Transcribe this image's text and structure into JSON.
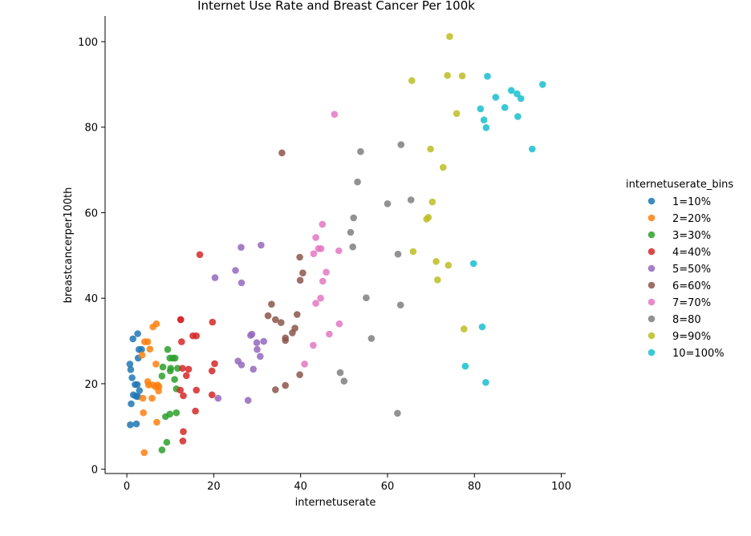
{
  "chart_data": {
    "type": "scatter",
    "title": "Internet Use Rate and Breast Cancer Per 100k",
    "xlabel": "internetuserate",
    "ylabel": "breastcancerper100th",
    "xlim": [
      -5,
      101
    ],
    "ylim": [
      -1,
      106
    ],
    "xticks": [
      "0",
      "20",
      "40",
      "60",
      "80",
      "100"
    ],
    "yticks": [
      "0",
      "20",
      "40",
      "60",
      "80",
      "100"
    ],
    "grid": false,
    "legend_title": "internetuserate_bins",
    "legend_position": "right",
    "series": [
      {
        "name": "1=10%",
        "color": "#1f77b4",
        "points": [
          [
            0.8,
            10.4
          ],
          [
            0.7,
            24.6
          ],
          [
            0.9,
            23.3
          ],
          [
            1.2,
            21.4
          ],
          [
            1.5,
            17.4
          ],
          [
            1.0,
            15.3
          ],
          [
            1.9,
            19.8
          ],
          [
            2.4,
            19.8
          ],
          [
            2.1,
            17.1
          ],
          [
            2.9,
            18.4
          ],
          [
            2.5,
            17.0
          ],
          [
            2.2,
            10.6
          ],
          [
            1.4,
            30.5
          ],
          [
            2.5,
            31.7
          ],
          [
            2.8,
            28.0
          ],
          [
            3.4,
            28.0
          ],
          [
            2.6,
            26.0
          ]
        ]
      },
      {
        "name": "2=20%",
        "color": "#ff7f0e",
        "points": [
          [
            4.0,
            3.9
          ],
          [
            3.8,
            13.2
          ],
          [
            3.7,
            16.6
          ],
          [
            3.5,
            26.7
          ],
          [
            4.1,
            29.8
          ],
          [
            4.8,
            29.8
          ],
          [
            5.3,
            28.1
          ],
          [
            6.0,
            33.3
          ],
          [
            6.8,
            34.0
          ],
          [
            5.8,
            16.6
          ],
          [
            4.8,
            20.5
          ],
          [
            5.0,
            19.7
          ],
          [
            6.0,
            19.7
          ],
          [
            6.7,
            24.6
          ],
          [
            7.1,
            19.7
          ],
          [
            7.4,
            19.3
          ],
          [
            6.6,
            19.3
          ],
          [
            7.3,
            18.3
          ],
          [
            6.9,
            11.0
          ]
        ]
      },
      {
        "name": "3=30%",
        "color": "#2ca02c",
        "points": [
          [
            8.1,
            4.5
          ],
          [
            9.2,
            6.3
          ],
          [
            8.9,
            12.3
          ],
          [
            9.9,
            12.9
          ],
          [
            11.4,
            13.2
          ],
          [
            8.1,
            21.8
          ],
          [
            8.3,
            23.9
          ],
          [
            9.4,
            28.0
          ],
          [
            9.9,
            26.0
          ],
          [
            10.6,
            26.0
          ],
          [
            11.1,
            26.0
          ],
          [
            11.0,
            21.0
          ],
          [
            10.1,
            23.6
          ],
          [
            10.0,
            23.0
          ],
          [
            11.4,
            18.8
          ],
          [
            11.7,
            23.6
          ]
        ]
      },
      {
        "name": "4=40%",
        "color": "#d62728",
        "points": [
          [
            12.9,
            6.6
          ],
          [
            13.0,
            8.8
          ],
          [
            12.3,
            18.5
          ],
          [
            13.0,
            17.2
          ],
          [
            12.8,
            23.6
          ],
          [
            13.7,
            21.9
          ],
          [
            14.2,
            23.4
          ],
          [
            12.6,
            29.8
          ],
          [
            12.4,
            35.0
          ],
          [
            12.4,
            35.0
          ],
          [
            15.2,
            31.2
          ],
          [
            16.0,
            31.2
          ],
          [
            16.8,
            50.2
          ],
          [
            15.8,
            13.6
          ],
          [
            16.0,
            18.5
          ],
          [
            19.6,
            17.4
          ],
          [
            19.6,
            23.0
          ],
          [
            20.2,
            24.7
          ],
          [
            19.7,
            34.4
          ]
        ]
      },
      {
        "name": "5=50%",
        "color": "#9467bd",
        "points": [
          [
            21.0,
            16.6
          ],
          [
            20.3,
            44.8
          ],
          [
            26.3,
            51.9
          ],
          [
            25.0,
            46.5
          ],
          [
            26.4,
            43.6
          ],
          [
            25.6,
            25.3
          ],
          [
            26.4,
            24.4
          ],
          [
            27.9,
            16.1
          ],
          [
            28.5,
            31.3
          ],
          [
            28.8,
            31.6
          ],
          [
            29.1,
            23.4
          ],
          [
            29.9,
            29.6
          ],
          [
            30.0,
            28.0
          ],
          [
            30.7,
            26.4
          ],
          [
            31.5,
            29.9
          ],
          [
            30.9,
            52.4
          ]
        ]
      },
      {
        "name": "6=60%",
        "color": "#8c564b",
        "points": [
          [
            34.2,
            18.6
          ],
          [
            36.5,
            19.6
          ],
          [
            39.8,
            22.1
          ],
          [
            35.7,
            74.0
          ],
          [
            32.5,
            35.9
          ],
          [
            33.3,
            38.6
          ],
          [
            34.2,
            35.0
          ],
          [
            35.5,
            34.3
          ],
          [
            36.5,
            30.7
          ],
          [
            36.5,
            30.1
          ],
          [
            38.1,
            31.9
          ],
          [
            38.7,
            33.0
          ],
          [
            39.2,
            36.2
          ],
          [
            39.8,
            49.6
          ],
          [
            39.9,
            44.2
          ],
          [
            40.5,
            45.9
          ]
        ]
      },
      {
        "name": "7=70%",
        "color": "#e377c2",
        "points": [
          [
            40.9,
            24.6
          ],
          [
            42.9,
            29.0
          ],
          [
            43.5,
            38.8
          ],
          [
            44.6,
            40.0
          ],
          [
            45.1,
            44.0
          ],
          [
            45.9,
            46.1
          ],
          [
            46.6,
            31.6
          ],
          [
            48.9,
            34.0
          ],
          [
            48.8,
            51.1
          ],
          [
            43.0,
            50.4
          ],
          [
            43.5,
            54.2
          ],
          [
            44.1,
            51.6
          ],
          [
            44.7,
            51.6
          ],
          [
            45.0,
            57.3
          ],
          [
            47.8,
            83.0
          ]
        ]
      },
      {
        "name": "8=80",
        "color": "#7f7f7f",
        "points": [
          [
            49.1,
            22.6
          ],
          [
            50.0,
            20.6
          ],
          [
            51.5,
            55.4
          ],
          [
            52.0,
            52.0
          ],
          [
            52.2,
            58.8
          ],
          [
            53.1,
            67.2
          ],
          [
            53.8,
            74.3
          ],
          [
            55.1,
            40.1
          ],
          [
            56.3,
            30.6
          ],
          [
            60.0,
            62.1
          ],
          [
            62.3,
            13.1
          ],
          [
            62.4,
            50.3
          ],
          [
            63.0,
            38.4
          ],
          [
            63.1,
            75.9
          ],
          [
            65.4,
            63.0
          ]
        ]
      },
      {
        "name": "9=90%",
        "color": "#bcbd22",
        "points": [
          [
            65.6,
            90.9
          ],
          [
            65.9,
            50.9
          ],
          [
            69.0,
            58.5
          ],
          [
            69.4,
            58.9
          ],
          [
            69.9,
            74.9
          ],
          [
            70.3,
            62.5
          ],
          [
            71.2,
            48.6
          ],
          [
            71.5,
            44.3
          ],
          [
            72.8,
            70.6
          ],
          [
            73.8,
            92.1
          ],
          [
            74.0,
            47.7
          ],
          [
            74.3,
            101.2
          ],
          [
            75.9,
            83.2
          ],
          [
            77.2,
            92.0
          ],
          [
            77.6,
            32.8
          ]
        ]
      },
      {
        "name": "10=100%",
        "color": "#17becf",
        "points": [
          [
            77.9,
            24.1
          ],
          [
            79.8,
            48.1
          ],
          [
            81.4,
            84.3
          ],
          [
            81.8,
            33.3
          ],
          [
            82.2,
            81.7
          ],
          [
            82.6,
            20.3
          ],
          [
            82.7,
            79.9
          ],
          [
            83.0,
            91.9
          ],
          [
            84.9,
            87.0
          ],
          [
            87.0,
            84.6
          ],
          [
            88.5,
            88.6
          ],
          [
            89.8,
            87.8
          ],
          [
            90.0,
            82.5
          ],
          [
            90.7,
            86.7
          ],
          [
            93.3,
            74.9
          ],
          [
            95.7,
            90.0
          ]
        ]
      }
    ]
  }
}
